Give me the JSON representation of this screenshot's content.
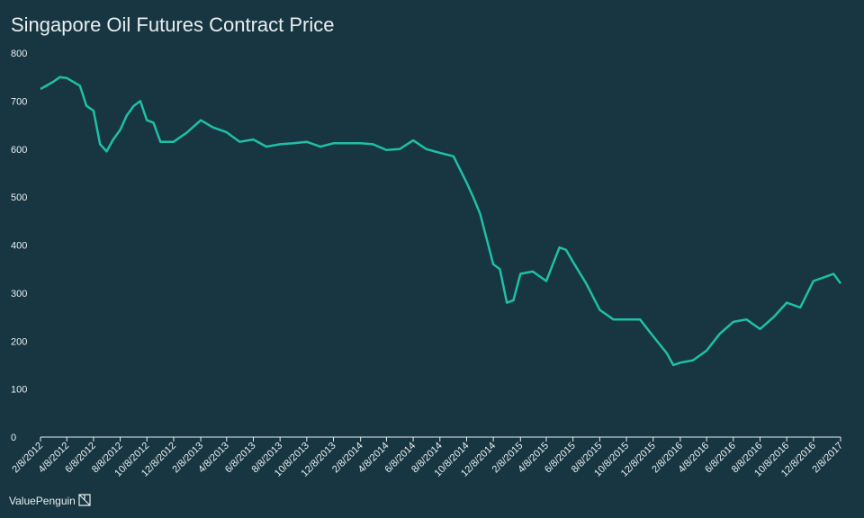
{
  "chart_data": {
    "type": "line",
    "title": "Singapore Oil Futures Contract Price",
    "footer": "ValuePenguin",
    "color": "#1fbfa8",
    "x": [
      "2/8/2012",
      "3/8/2012",
      "3/23/2012",
      "4/8/2012",
      "5/8/2012",
      "5/23/2012",
      "6/8/2012",
      "6/23/2012",
      "7/8/2012",
      "7/23/2012",
      "8/8/2012",
      "8/23/2012",
      "9/8/2012",
      "9/23/2012",
      "10/8/2012",
      "10/23/2012",
      "11/8/2012",
      "12/8/2012",
      "1/8/2013",
      "2/8/2013",
      "3/8/2013",
      "4/8/2013",
      "5/8/2013",
      "6/8/2013",
      "7/8/2013",
      "8/8/2013",
      "9/8/2013",
      "10/8/2013",
      "11/8/2013",
      "12/8/2013",
      "1/8/2014",
      "2/8/2014",
      "3/8/2014",
      "4/8/2014",
      "5/8/2014",
      "6/8/2014",
      "7/8/2014",
      "8/8/2014",
      "9/8/2014",
      "10/8/2014",
      "10/23/2014",
      "11/8/2014",
      "12/8/2014",
      "12/23/2014",
      "1/8/2015",
      "1/23/2015",
      "2/8/2015",
      "3/8/2015",
      "4/8/2015",
      "5/8/2015",
      "5/23/2015",
      "6/8/2015",
      "7/8/2015",
      "8/8/2015",
      "9/8/2015",
      "10/8/2015",
      "11/8/2015",
      "12/8/2015",
      "1/8/2016",
      "1/23/2016",
      "2/8/2016",
      "3/8/2016",
      "4/8/2016",
      "5/8/2016",
      "6/8/2016",
      "7/8/2016",
      "8/8/2016",
      "9/8/2016",
      "10/8/2016",
      "11/8/2016",
      "12/8/2016",
      "1/8/2017",
      "1/23/2017",
      "2/8/2017"
    ],
    "values": [
      725,
      740,
      750,
      748,
      732,
      690,
      680,
      610,
      595,
      620,
      640,
      670,
      690,
      700,
      660,
      655,
      615,
      615,
      635,
      660,
      645,
      635,
      615,
      620,
      605,
      610,
      612,
      615,
      605,
      612,
      612,
      612,
      610,
      598,
      600,
      618,
      600,
      592,
      585,
      530,
      500,
      465,
      360,
      350,
      280,
      285,
      340,
      345,
      325,
      395,
      390,
      365,
      320,
      265,
      245,
      245,
      245,
      210,
      175,
      150,
      155,
      160,
      180,
      215,
      240,
      245,
      225,
      250,
      280,
      270,
      325,
      335,
      340,
      320
    ],
    "xlim": [
      "2/8/2012",
      "2/8/2017"
    ],
    "xticks": [
      "2/8/2012",
      "4/8/2012",
      "6/8/2012",
      "8/8/2012",
      "10/8/2012",
      "12/8/2012",
      "2/8/2013",
      "4/8/2013",
      "6/8/2013",
      "8/8/2013",
      "10/8/2013",
      "12/8/2013",
      "2/8/2014",
      "4/8/2014",
      "6/8/2014",
      "8/8/2014",
      "10/8/2014",
      "12/8/2014",
      "2/8/2015",
      "4/8/2015",
      "6/8/2015",
      "8/8/2015",
      "10/8/2015",
      "12/8/2015",
      "2/8/2016",
      "4/8/2016",
      "6/8/2016",
      "8/8/2016",
      "10/8/2016",
      "12/8/2016",
      "2/8/2017"
    ],
    "ylim": [
      0,
      800
    ],
    "yticks": [
      0,
      100,
      200,
      300,
      400,
      500,
      600,
      700,
      800
    ]
  }
}
